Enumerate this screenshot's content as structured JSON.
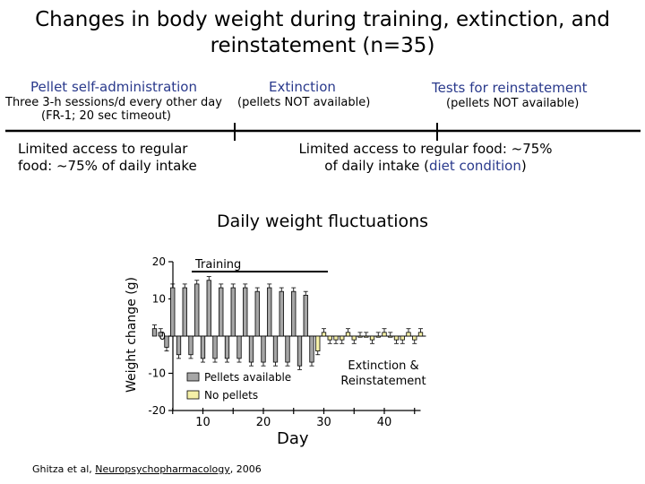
{
  "header": {
    "title": "Changes in body weight during training, extinction, and reinstatement (n=35)"
  },
  "timeline": {
    "phases": [
      {
        "label": "Pellet self-administration",
        "description": "Three 3-h sessions/d every other day",
        "detail": "(FR-1; 20 sec timeout)"
      },
      {
        "label": "Extinction",
        "description": "(pellets NOT available)"
      },
      {
        "label": "Tests for reinstatement",
        "description": "(pellets NOT available)"
      }
    ],
    "food_left": "Limited access to regular food: ~75% of daily intake",
    "food_right_prefix": "Limited access to regular food: ~75% of daily intake (",
    "food_right_highlight": "diet condition",
    "food_right_suffix": ")",
    "colors": {
      "phase_text": "#2a3a8c",
      "highlight": "#2a3a8c"
    }
  },
  "chart_data": {
    "type": "bar",
    "title": "Daily weight fluctuations",
    "xlabel": "Day",
    "ylabel": "Weight change (g)",
    "ylim": [
      -20,
      20
    ],
    "yticks": [
      20,
      10,
      0,
      -10,
      -20
    ],
    "xticks": [
      10,
      20,
      30,
      40
    ],
    "series": [
      {
        "name": "Pellets available",
        "color": "#a6a6a6",
        "x": [
          2,
          3,
          4,
          5,
          6,
          7,
          8,
          9,
          10,
          11,
          12,
          13,
          14,
          15,
          16,
          17,
          18,
          19,
          20,
          21,
          22,
          23,
          24,
          25,
          26,
          27,
          28
        ],
        "values": [
          2,
          1,
          -3,
          13,
          -5,
          13,
          -5,
          14,
          -6,
          15,
          -6,
          13,
          -6,
          13,
          -6,
          13,
          -7,
          12,
          -7,
          13,
          -7,
          12,
          -7,
          12,
          -8,
          11,
          -7
        ],
        "errors": [
          1,
          1,
          1,
          1,
          1,
          1,
          1,
          1,
          1,
          1,
          1,
          1,
          1,
          1,
          1,
          1,
          1,
          1,
          1,
          1,
          1,
          1,
          1,
          1,
          1,
          1,
          1
        ]
      },
      {
        "name": "No pellets",
        "color": "#f5f0a8",
        "x": [
          29,
          30,
          31,
          32,
          33,
          34,
          35,
          36,
          37,
          38,
          39,
          40,
          41,
          42,
          43,
          44,
          45,
          46
        ],
        "values": [
          -4,
          1,
          -1,
          -1,
          -1,
          1,
          -1,
          0,
          0,
          -1,
          0,
          1,
          0,
          -1,
          -1,
          1,
          -1,
          1
        ],
        "errors": [
          1,
          1,
          1,
          1,
          1,
          1,
          1,
          1,
          1,
          1,
          1,
          1,
          1,
          1,
          1,
          1,
          1,
          1
        ]
      }
    ],
    "annotations": {
      "training": "Training",
      "extinction": "Extinction & Reinstatement"
    },
    "legend": [
      "Pellets available",
      "No pellets"
    ]
  },
  "footer": {
    "citation_prefix": "Ghitza et al, ",
    "journal": "Neuropsychopharmacology",
    "citation_suffix": ", 2006"
  }
}
